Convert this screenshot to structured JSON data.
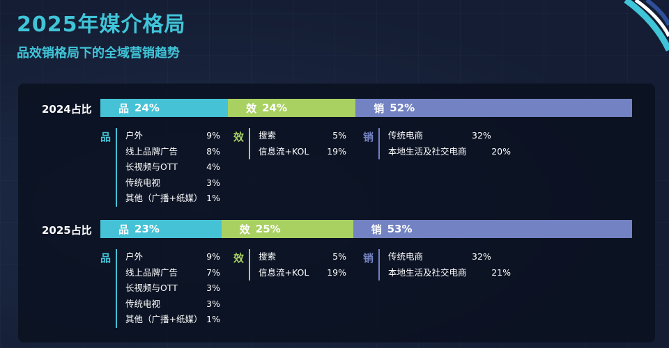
{
  "header": {
    "title": "2025年媒介格局",
    "subtitle": "品效销格局下的全域营销趋势"
  },
  "colors": {
    "pin": "#45c2d6",
    "xiao": "#a9d162",
    "xiao2": "#7382c2",
    "accent": "#40c4d8"
  },
  "chart_data": [
    {
      "type": "bar",
      "label": "2024占比",
      "series": [
        {
          "name": "品",
          "value": 24,
          "display": "24%"
        },
        {
          "name": "效",
          "value": 24,
          "display": "24%"
        },
        {
          "name": "销",
          "value": 52,
          "display": "52%"
        }
      ],
      "breakdown": {
        "pin": [
          {
            "label": "户外",
            "value": "9%"
          },
          {
            "label": "线上品牌广告",
            "value": "8%"
          },
          {
            "label": "长视频与OTT",
            "value": "4%"
          },
          {
            "label": "传统电视",
            "value": "3%"
          },
          {
            "label": "其他（广播+纸媒）",
            "value": "1%"
          }
        ],
        "xiao": [
          {
            "label": "搜索",
            "value": "5%"
          },
          {
            "label": "信息流+KOL",
            "value": "19%"
          }
        ],
        "xiao2": [
          {
            "label": "传统电商",
            "value": "32%"
          },
          {
            "label": "本地生活及社交电商",
            "value": "20%"
          }
        ]
      }
    },
    {
      "type": "bar",
      "label": "2025占比",
      "series": [
        {
          "name": "品",
          "value": 23,
          "display": "23%"
        },
        {
          "name": "效",
          "value": 25,
          "display": "25%"
        },
        {
          "name": "销",
          "value": 53,
          "display": "53%"
        }
      ],
      "breakdown": {
        "pin": [
          {
            "label": "户外",
            "value": "9%"
          },
          {
            "label": "线上品牌广告",
            "value": "7%"
          },
          {
            "label": "长视频与OTT",
            "value": "3%"
          },
          {
            "label": "传统电视",
            "value": "3%"
          },
          {
            "label": "其他（广播+纸媒）",
            "value": "1%"
          }
        ],
        "xiao": [
          {
            "label": "搜索",
            "value": "5%"
          },
          {
            "label": "信息流+KOL",
            "value": "19%"
          }
        ],
        "xiao2": [
          {
            "label": "传统电商",
            "value": "32%"
          },
          {
            "label": "本地生活及社交电商",
            "value": "21%"
          }
        ]
      }
    }
  ]
}
